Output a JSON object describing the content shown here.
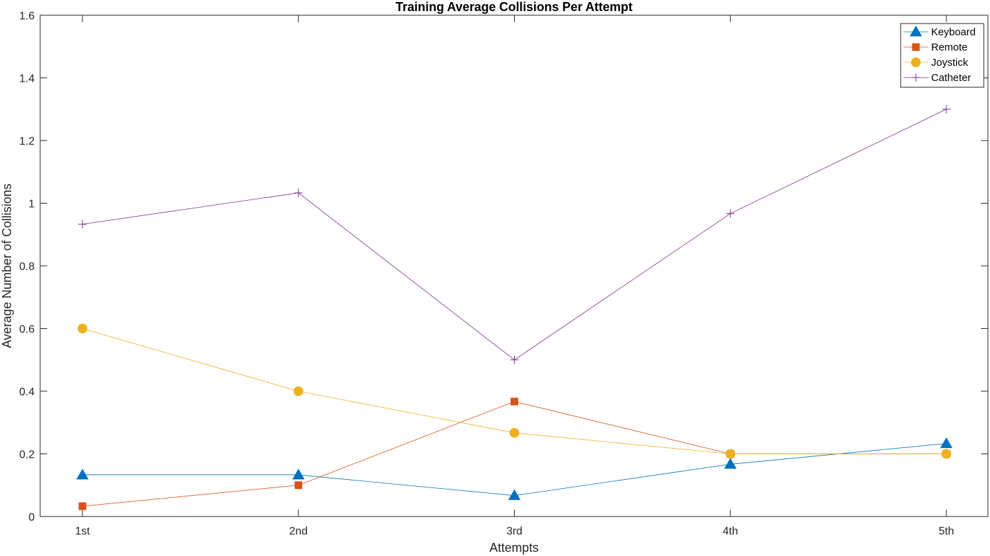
{
  "chart_data": {
    "type": "line",
    "title": "Training Average Collisions Per Attempt",
    "xlabel": "Attempts",
    "ylabel": "Average Number of Collisions",
    "categories": [
      "1st",
      "2nd",
      "3rd",
      "4th",
      "5th"
    ],
    "ylim": [
      0,
      1.6
    ],
    "yticks": [
      0,
      0.2,
      0.4,
      0.6,
      0.8,
      1,
      1.2,
      1.4,
      1.6
    ],
    "ytick_labels": [
      "0",
      "0.2",
      "0.4",
      "0.6",
      "0.8",
      "1",
      "1.2",
      "1.4",
      "1.6"
    ],
    "grid": false,
    "legend_position": "top-right",
    "series": [
      {
        "name": "Keyboard",
        "color": "#0072BD",
        "marker": "triangle",
        "values": [
          0.133,
          0.133,
          0.067,
          0.167,
          0.233
        ]
      },
      {
        "name": "Remote",
        "color": "#D95319",
        "marker": "square",
        "values": [
          0.033,
          0.1,
          0.367,
          0.2,
          0.2
        ]
      },
      {
        "name": "Joystick",
        "color": "#EDB120",
        "marker": "circle",
        "values": [
          0.6,
          0.4,
          0.267,
          0.2,
          0.2
        ]
      },
      {
        "name": "Catheter",
        "color": "#7E2F8E",
        "marker": "plus",
        "values": [
          0.933,
          1.033,
          0.5,
          0.967,
          1.3
        ]
      }
    ]
  }
}
